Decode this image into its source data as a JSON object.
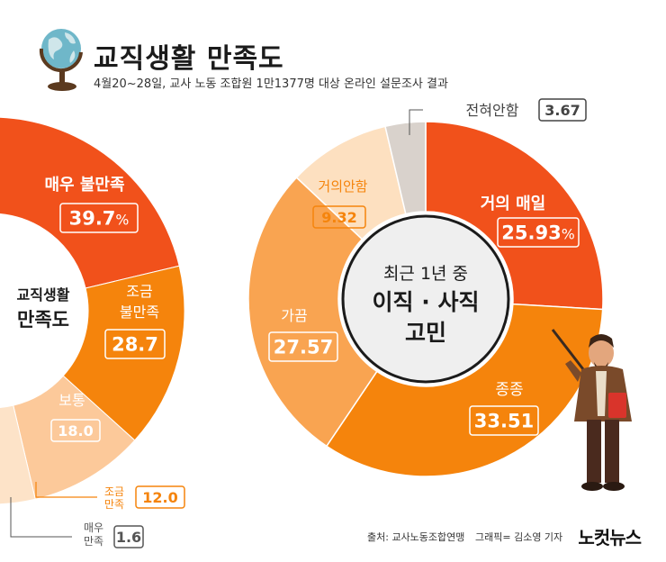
{
  "header": {
    "title": "교직생활 만족도",
    "subtitle": "4월20~28일, 교사 노동 조합원 1만1377명 대상 온라인 설문조사 결과"
  },
  "chart_data": [
    {
      "type": "pie",
      "variant": "donut",
      "center_label": [
        "교직생활",
        "만족도"
      ],
      "categories": [
        "매우 불만족",
        "조금 불만족",
        "보통",
        "조금 만족",
        "매우 만족"
      ],
      "category_lines": [
        [
          "매우 불만족"
        ],
        [
          "조금",
          "불만족"
        ],
        [
          "보통"
        ],
        [
          "조금",
          "만족"
        ],
        [
          "매우",
          "만족"
        ]
      ],
      "values": [
        39.7,
        28.7,
        18.0,
        12.0,
        1.6
      ],
      "value_labels": [
        "39.7",
        "28.7",
        "18.0",
        "12.0",
        "1.6"
      ],
      "unit": "%",
      "colors": [
        "#f1511b",
        "#f5840c",
        "#fcc99a",
        "#fde3c8",
        "#d9d2cc"
      ]
    },
    {
      "type": "pie",
      "variant": "donut",
      "center_label": [
        "최근 1년 중",
        "이직 · 사직",
        "고민"
      ],
      "categories": [
        "거의 매일",
        "종종",
        "가끔",
        "거의안함",
        "전혀안함"
      ],
      "values": [
        25.93,
        33.51,
        27.57,
        9.32,
        3.67
      ],
      "value_labels": [
        "25.93",
        "33.51",
        "27.57",
        "9.32",
        "3.67"
      ],
      "unit": "%",
      "colors": [
        "#f1511b",
        "#f5840c",
        "#f9a451",
        "#fde0c0",
        "#d9d2cc"
      ]
    }
  ],
  "footer": {
    "source": "출처: 교사노동조합연맹",
    "graphic": "그래픽= 김소영 기자",
    "brand": "노컷뉴스"
  },
  "colors": {
    "accent": "#f1511b",
    "orange": "#f5840c",
    "text": "#1b1b1b"
  },
  "icons": [
    "globe-icon",
    "teacher-illustration"
  ]
}
